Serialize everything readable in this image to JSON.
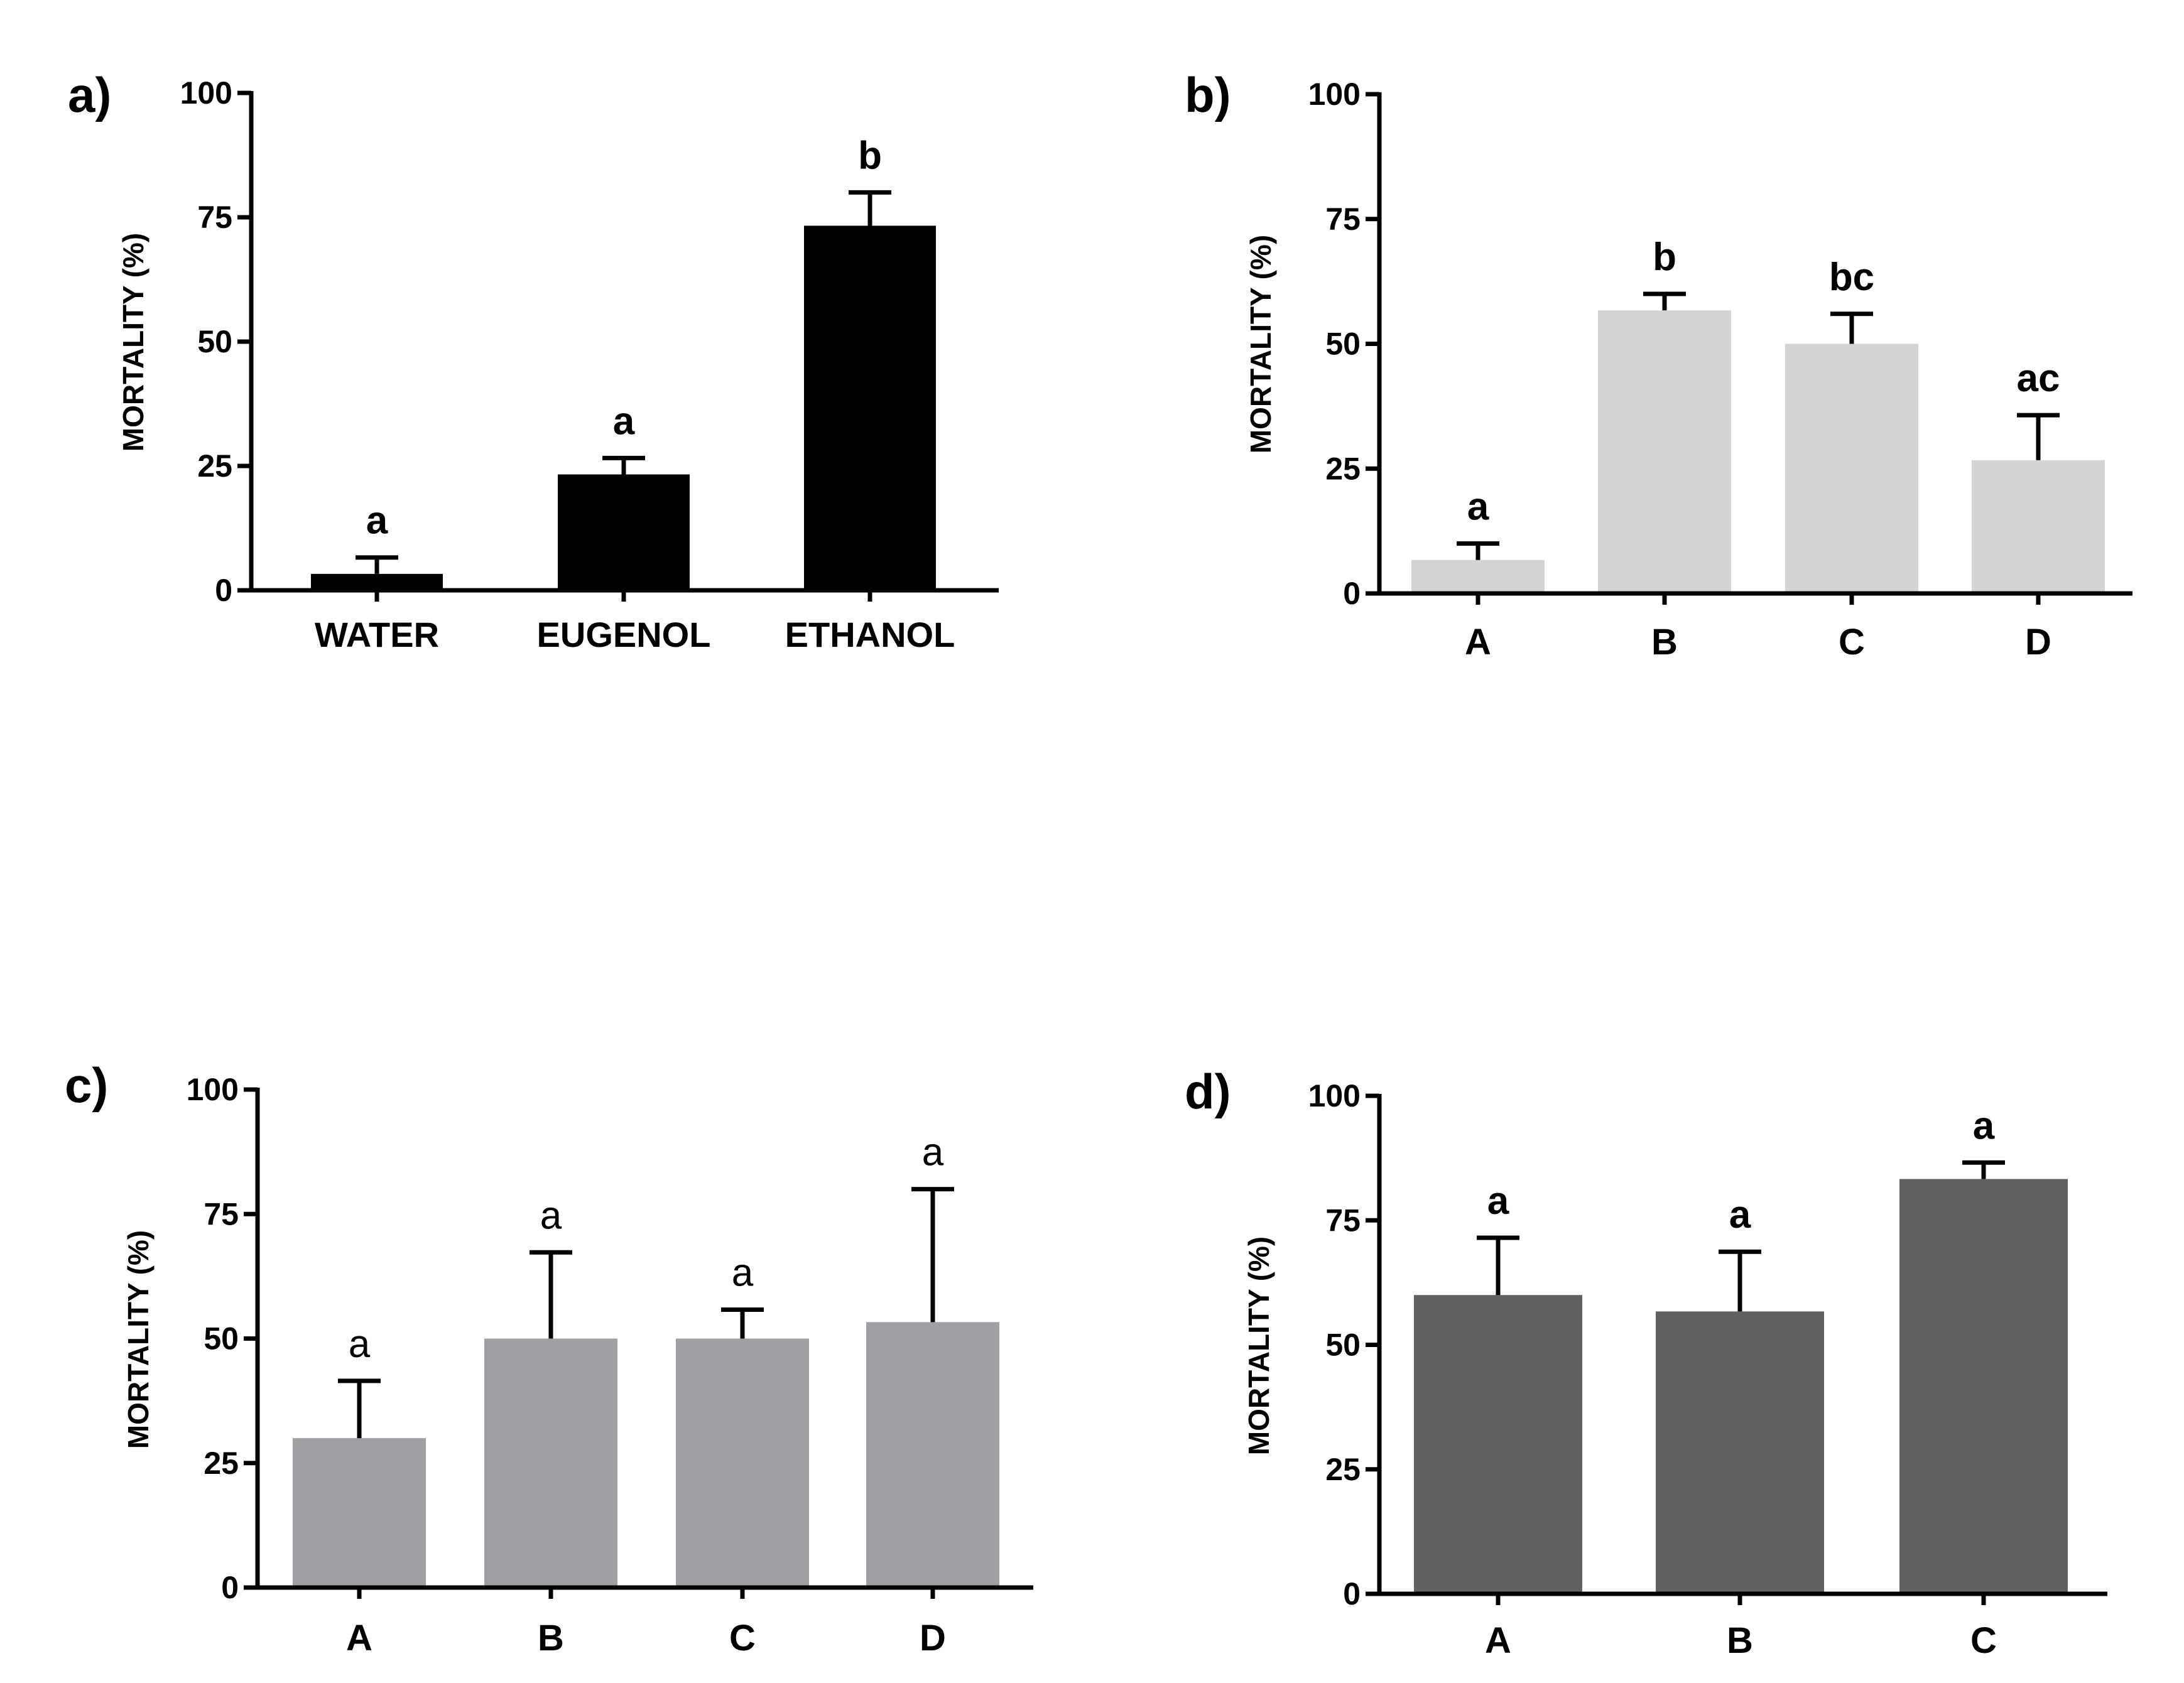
{
  "figure": {
    "colors": {
      "axis": "#000000",
      "text": "#000000",
      "background": "#ffffff"
    }
  },
  "chart_data": [
    {
      "type": "bar",
      "panel_label": "a)",
      "title": "",
      "xlabel": "",
      "ylabel": "MORTALITY (%)",
      "ylim": [
        0,
        100
      ],
      "yticks": [
        0,
        25,
        50,
        75,
        100
      ],
      "categories": [
        "WATER",
        "EUGENOL",
        "ETHANOL"
      ],
      "values": [
        3.3,
        23.3,
        73.3
      ],
      "errors": [
        3.3,
        3.3,
        6.7
      ],
      "significance_letters": [
        "a",
        "a",
        "b"
      ],
      "letters_bold": true,
      "bar_color": "#000000",
      "grid": false,
      "legend": "none"
    },
    {
      "type": "bar",
      "panel_label": "b)",
      "title": "",
      "xlabel": "",
      "ylabel": "MORTALITY (%)",
      "ylim": [
        0,
        100
      ],
      "yticks": [
        0,
        25,
        50,
        75,
        100
      ],
      "categories": [
        "A",
        "B",
        "C",
        "D"
      ],
      "values": [
        6.7,
        56.7,
        50.0,
        26.7
      ],
      "errors": [
        3.3,
        3.3,
        6.0,
        9.0
      ],
      "significance_letters": [
        "a",
        "b",
        "bc",
        "ac"
      ],
      "letters_bold": true,
      "bar_color": "#d4d4d4",
      "grid": false,
      "legend": "none"
    },
    {
      "type": "bar",
      "panel_label": "c)",
      "title": "",
      "xlabel": "",
      "ylabel": "MORTALITY (%)",
      "ylim": [
        0,
        100
      ],
      "yticks": [
        0,
        25,
        50,
        75,
        100
      ],
      "categories": [
        "A",
        "B",
        "C",
        "D"
      ],
      "values": [
        30.0,
        50.0,
        50.0,
        53.3
      ],
      "errors": [
        11.5,
        17.3,
        5.8,
        26.7
      ],
      "significance_letters": [
        "a",
        "a",
        "a",
        "a"
      ],
      "letters_bold": false,
      "bar_color": "#a0a0a4",
      "grid": false,
      "legend": "none"
    },
    {
      "type": "bar",
      "panel_label": "d)",
      "title": "",
      "xlabel": "",
      "ylabel": "MORTALITY (%)",
      "ylim": [
        0,
        100
      ],
      "yticks": [
        0,
        25,
        50,
        75,
        100
      ],
      "categories": [
        "A",
        "B",
        "C"
      ],
      "values": [
        60.0,
        56.7,
        83.3
      ],
      "errors": [
        11.5,
        12.0,
        3.3
      ],
      "significance_letters": [
        "a",
        "a",
        "a"
      ],
      "letters_bold": true,
      "bar_color": "#616161",
      "grid": false,
      "legend": "none"
    }
  ]
}
